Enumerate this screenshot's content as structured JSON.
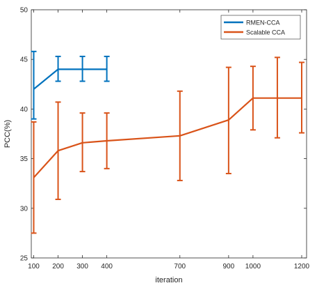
{
  "chart_data": {
    "type": "line",
    "xlabel": "iteration",
    "ylabel": "PCC(%)",
    "xlim": [
      90,
      1220
    ],
    "ylim": [
      25,
      50
    ],
    "xticks": [
      100,
      200,
      300,
      400,
      700,
      900,
      1000,
      1200
    ],
    "yticks": [
      25,
      30,
      35,
      40,
      45,
      50
    ],
    "grid": false,
    "legend_position": "top-right",
    "series": [
      {
        "name": "RMEN-CCA",
        "color": "#0072BD",
        "x": [
          100,
          200,
          300,
          400
        ],
        "y": [
          42.0,
          44.0,
          44.0,
          44.0
        ],
        "err_low": [
          39.0,
          42.8,
          42.8,
          42.8
        ],
        "err_high": [
          45.8,
          45.3,
          45.3,
          45.3
        ]
      },
      {
        "name": "Scalable CCA",
        "color": "#D95319",
        "x": [
          100,
          200,
          300,
          400,
          700,
          900,
          1000,
          1100,
          1200
        ],
        "y": [
          33.1,
          35.8,
          36.6,
          36.8,
          37.3,
          38.9,
          41.1,
          41.1,
          41.1
        ],
        "err_low": [
          27.5,
          30.9,
          33.7,
          34.0,
          32.8,
          33.5,
          37.9,
          37.1,
          37.6
        ],
        "err_high": [
          38.7,
          40.7,
          39.6,
          39.6,
          41.8,
          44.2,
          44.3,
          45.2,
          44.7
        ]
      }
    ]
  }
}
